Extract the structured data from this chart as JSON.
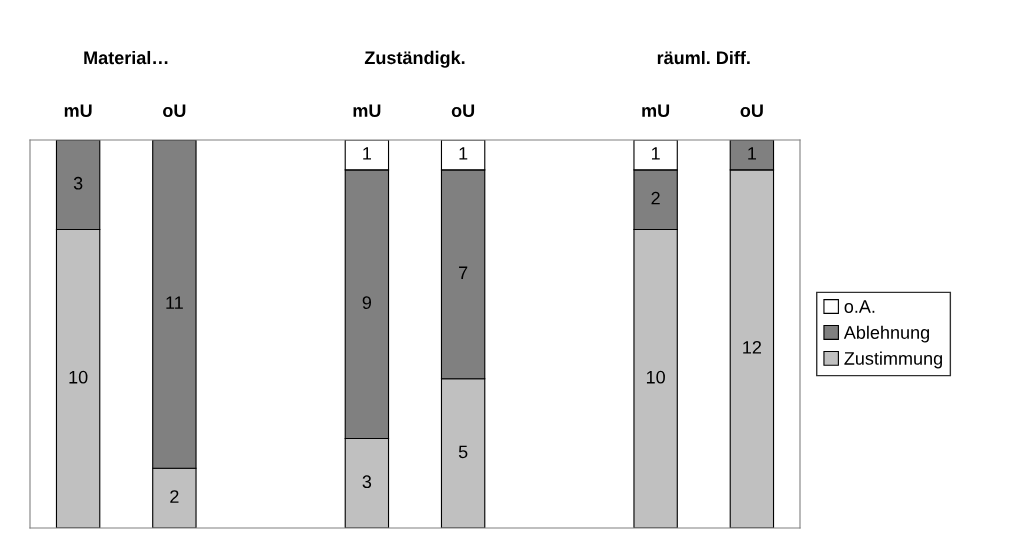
{
  "chart_data": {
    "type": "bar",
    "stacked": true,
    "data_labels": true,
    "legend": "right",
    "tick_labels": "x",
    "categories": [
      "mU",
      "oU",
      null,
      "mU",
      "oU",
      null,
      "mU",
      "oU"
    ],
    "annotations": [
      "Material…",
      "Zuständigk.",
      "räuml. Diff."
    ],
    "ylim": [
      0,
      13
    ],
    "series": [
      {
        "name": "Zustimmung",
        "color": "#c0c0c0",
        "values": [
          10,
          2,
          null,
          3,
          5,
          null,
          10,
          12
        ]
      },
      {
        "name": "Ablehnung",
        "color": "#808080",
        "values": [
          3,
          11,
          null,
          9,
          7,
          null,
          2,
          1
        ]
      },
      {
        "name": "o.A.",
        "color": "#ffffff",
        "values": [
          null,
          null,
          null,
          1,
          1,
          null,
          1,
          null
        ]
      }
    ]
  }
}
